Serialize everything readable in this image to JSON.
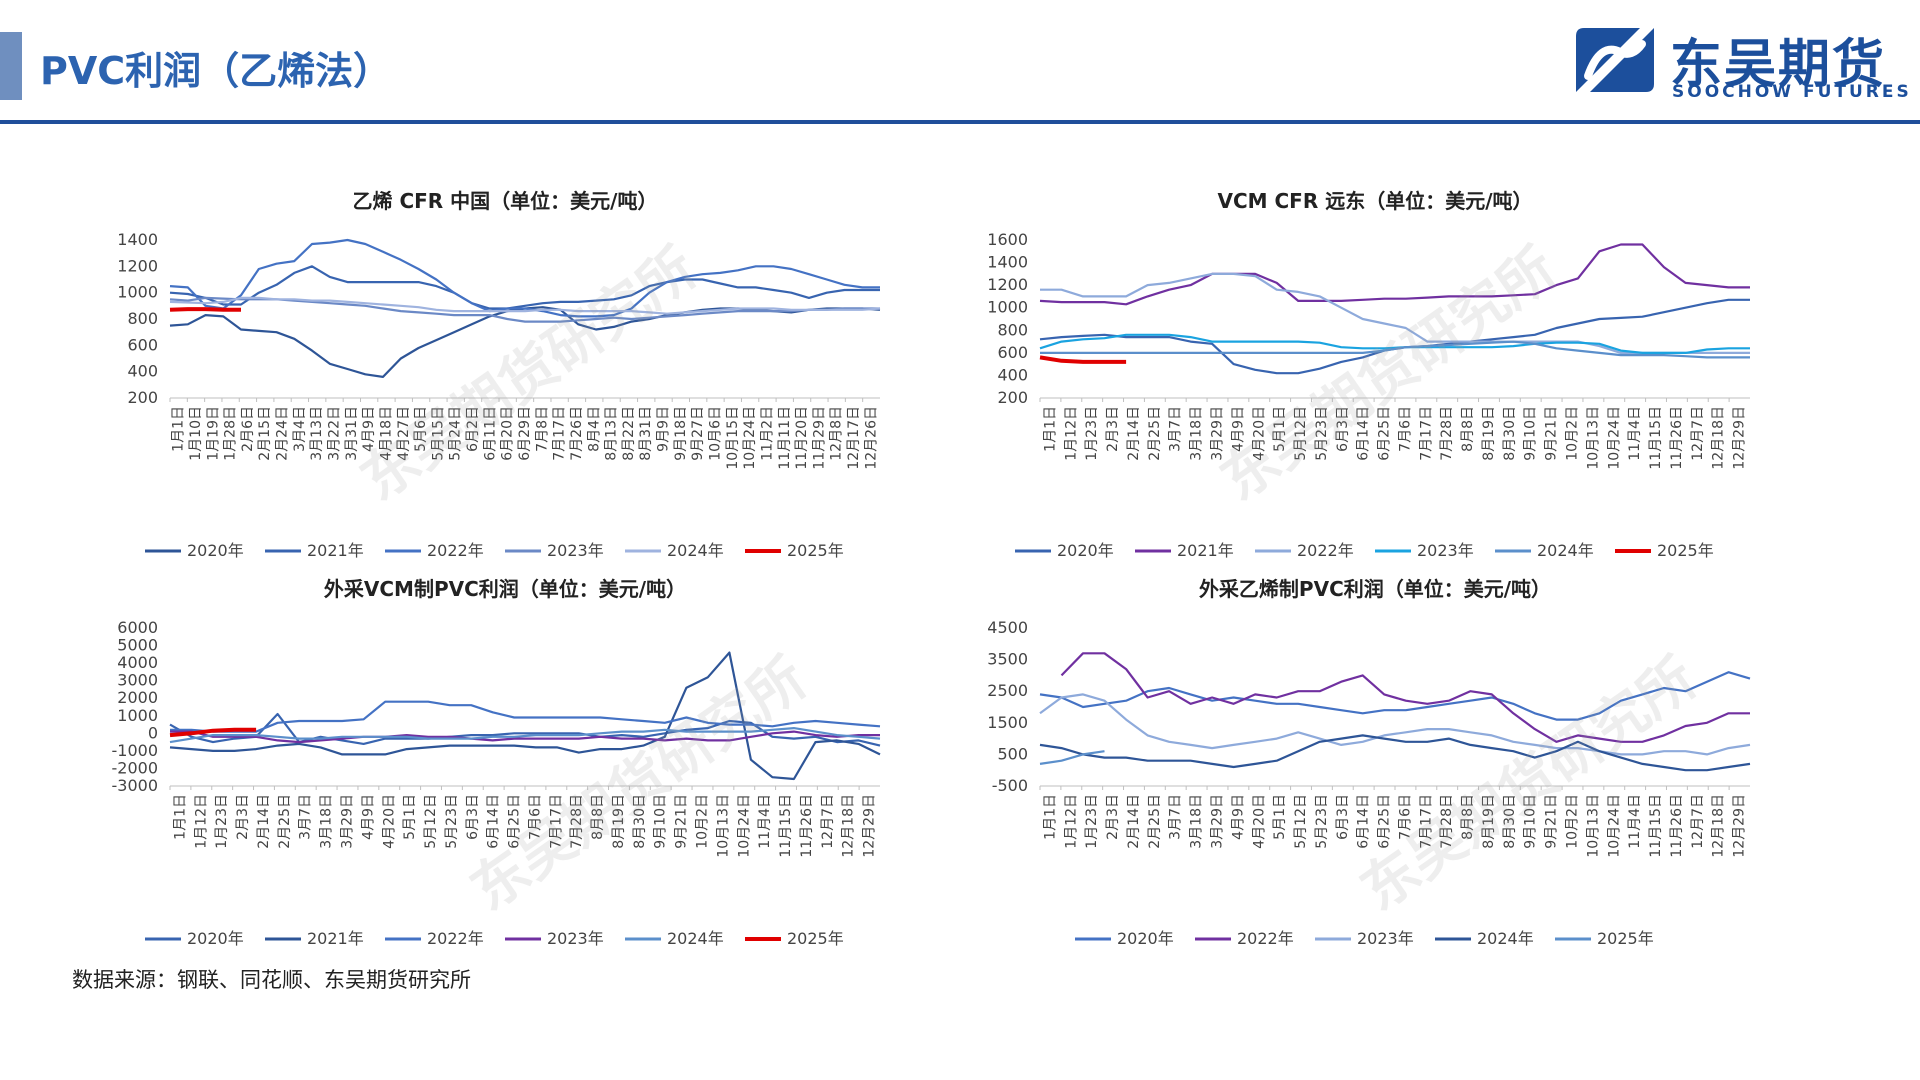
{
  "page": {
    "title": "PVC利润（乙烯法）",
    "source": "数据来源：钢联、同花顺、东吴期货研究所",
    "watermark": "东吴期货研究所"
  },
  "logo": {
    "cn": "东吴期货",
    "en": "SOOCHOW FUTURES",
    "color": "#1c4f9c"
  },
  "chart_data": [
    {
      "id": "ethylene",
      "type": "line",
      "title": "乙烯 CFR 中国（单位：美元/吨）",
      "ylim": [
        200,
        1400
      ],
      "yticks": [
        200,
        400,
        600,
        800,
        1000,
        1200,
        1400
      ],
      "xticks": [
        "1月1日",
        "1月10日",
        "1月19日",
        "1月28日",
        "2月6日",
        "2月15日",
        "2月24日",
        "3月4日",
        "3月13日",
        "3月22日",
        "3月31日",
        "4月9日",
        "4月18日",
        "4月27日",
        "5月6日",
        "5月15日",
        "5月24日",
        "6月2日",
        "6月11日",
        "6月20日",
        "6月29日",
        "7月8日",
        "7月17日",
        "7月26日",
        "8月4日",
        "8月13日",
        "8月22日",
        "8月31日",
        "9月9日",
        "9月18日",
        "9月27日",
        "10月6日",
        "10月15日",
        "10月24日",
        "11月2日",
        "11月11日",
        "11月20日",
        "11月29日",
        "12月8日",
        "12月17日",
        "12月26日"
      ],
      "series": [
        {
          "name": "2020年",
          "color": "#2e5597",
          "values": [
            750,
            760,
            830,
            820,
            720,
            710,
            700,
            650,
            560,
            460,
            420,
            380,
            360,
            500,
            580,
            640,
            700,
            760,
            820,
            860,
            880,
            890,
            870,
            760,
            720,
            740,
            780,
            800,
            830,
            850,
            870,
            880,
            880,
            870,
            860,
            850,
            870,
            880,
            880,
            880,
            870
          ]
        },
        {
          "name": "2021年",
          "color": "#3864b0",
          "values": [
            1000,
            990,
            960,
            910,
            910,
            1000,
            1060,
            1150,
            1200,
            1120,
            1080,
            1080,
            1080,
            1080,
            1080,
            1050,
            1000,
            920,
            880,
            880,
            900,
            920,
            930,
            930,
            940,
            950,
            980,
            1050,
            1080,
            1100,
            1100,
            1070,
            1040,
            1040,
            1020,
            1000,
            960,
            1000,
            1020,
            1020,
            1020
          ]
        },
        {
          "name": "2022年",
          "color": "#4472c4",
          "values": [
            1050,
            1040,
            900,
            880,
            980,
            1180,
            1220,
            1240,
            1370,
            1380,
            1400,
            1370,
            1310,
            1250,
            1180,
            1100,
            1000,
            920,
            860,
            880,
            880,
            860,
            830,
            820,
            820,
            830,
            880,
            1000,
            1080,
            1120,
            1140,
            1150,
            1170,
            1200,
            1200,
            1180,
            1140,
            1100,
            1060,
            1040,
            1040
          ]
        },
        {
          "name": "2023年",
          "color": "#6b89c6",
          "values": [
            950,
            940,
            960,
            955,
            950,
            950,
            950,
            940,
            930,
            920,
            910,
            900,
            880,
            860,
            850,
            840,
            830,
            830,
            830,
            800,
            780,
            780,
            780,
            790,
            800,
            810,
            800,
            810,
            820,
            830,
            840,
            850,
            860,
            860,
            860,
            860,
            870,
            870,
            880,
            880,
            880
          ]
        },
        {
          "name": "2024年",
          "color": "#9fb3df",
          "values": [
            930,
            925,
            920,
            930,
            960,
            960,
            950,
            950,
            940,
            940,
            930,
            920,
            910,
            900,
            890,
            870,
            860,
            860,
            860,
            860,
            860,
            870,
            870,
            860,
            860,
            860,
            860,
            850,
            840,
            850,
            860,
            870,
            880,
            880,
            880,
            870,
            870,
            870,
            870,
            870,
            880
          ]
        },
        {
          "name": "2025年",
          "color": "#e00000",
          "values": [
            870,
            875,
            875,
            870,
            870
          ]
        }
      ]
    },
    {
      "id": "vcm",
      "type": "line",
      "title": "VCM CFR 远东（单位：美元/吨）",
      "ylim": [
        200,
        1600
      ],
      "yticks": [
        200,
        400,
        600,
        800,
        1000,
        1200,
        1400,
        1600
      ],
      "xticks": [
        "1月1日",
        "1月12日",
        "1月23日",
        "2月3日",
        "2月14日",
        "2月25日",
        "3月7日",
        "3月18日",
        "3月29日",
        "4月9日",
        "4月20日",
        "5月1日",
        "5月12日",
        "5月23日",
        "6月3日",
        "6月14日",
        "6月25日",
        "7月6日",
        "7月17日",
        "7月28日",
        "8月8日",
        "8月19日",
        "8月30日",
        "9月10日",
        "9月21日",
        "10月2日",
        "10月13日",
        "10月24日",
        "11月4日",
        "11月15日",
        "11月26日",
        "12月7日",
        "12月18日",
        "12月29日"
      ],
      "series": [
        {
          "name": "2020年",
          "color": "#3864b0",
          "values": [
            720,
            740,
            750,
            760,
            740,
            740,
            740,
            700,
            680,
            500,
            450,
            420,
            420,
            460,
            520,
            560,
            620,
            650,
            660,
            680,
            700,
            720,
            740,
            760,
            820,
            860,
            900,
            910,
            920,
            960,
            1000,
            1040,
            1070,
            1070
          ]
        },
        {
          "name": "2021年",
          "color": "#7030a0",
          "values": [
            1060,
            1050,
            1050,
            1050,
            1030,
            1100,
            1160,
            1200,
            1300,
            1300,
            1300,
            1220,
            1060,
            1060,
            1060,
            1070,
            1080,
            1080,
            1090,
            1100,
            1100,
            1100,
            1110,
            1120,
            1200,
            1260,
            1500,
            1560,
            1560,
            1360,
            1220,
            1200,
            1180,
            1180
          ]
        },
        {
          "name": "2022年",
          "color": "#8eaadb",
          "values": [
            1160,
            1160,
            1100,
            1100,
            1100,
            1200,
            1220,
            1260,
            1300,
            1300,
            1280,
            1160,
            1140,
            1100,
            1000,
            900,
            860,
            820,
            700,
            700,
            700,
            700,
            700,
            700,
            700,
            700,
            660,
            600,
            600,
            600,
            600,
            600,
            600,
            600
          ]
        },
        {
          "name": "2023年",
          "color": "#1aa3e0",
          "values": [
            640,
            700,
            720,
            730,
            760,
            760,
            760,
            740,
            700,
            700,
            700,
            700,
            700,
            690,
            650,
            640,
            640,
            650,
            650,
            650,
            650,
            650,
            660,
            680,
            690,
            690,
            680,
            620,
            600,
            600,
            600,
            630,
            640,
            640
          ]
        },
        {
          "name": "2024年",
          "color": "#5b8fcb",
          "values": [
            600,
            600,
            600,
            600,
            600,
            600,
            600,
            600,
            600,
            600,
            600,
            600,
            600,
            600,
            600,
            600,
            620,
            650,
            660,
            670,
            680,
            690,
            700,
            680,
            640,
            620,
            600,
            580,
            580,
            580,
            570,
            560,
            560,
            560
          ]
        },
        {
          "name": "2025年",
          "color": "#e00000",
          "values": [
            560,
            530,
            520,
            520,
            520
          ]
        }
      ]
    },
    {
      "id": "vcm-profit",
      "type": "line",
      "title": "外采VCM制PVC利润（单位：美元/吨）",
      "ylim": [
        -3000,
        6000
      ],
      "yticks": [
        -3000,
        -2000,
        -1000,
        0,
        1000,
        2000,
        3000,
        4000,
        5000,
        6000
      ],
      "xticks": [
        "1月1日",
        "1月12日",
        "1月23日",
        "2月3日",
        "2月14日",
        "2月25日",
        "3月7日",
        "3月18日",
        "3月29日",
        "4月9日",
        "4月20日",
        "5月1日",
        "5月12日",
        "5月23日",
        "6月3日",
        "6月14日",
        "6月25日",
        "7月6日",
        "7月17日",
        "7月28日",
        "8月8日",
        "8月19日",
        "8月30日",
        "9月10日",
        "9月21日",
        "10月2日",
        "10月13日",
        "10月24日",
        "11月4日",
        "11月15日",
        "11月26日",
        "12月7日",
        "12月18日",
        "12月29日"
      ],
      "series": [
        {
          "name": "2020年",
          "color": "#3864b0",
          "values": [
            500,
            -200,
            -500,
            -300,
            -200,
            1100,
            -500,
            -200,
            -400,
            -600,
            -300,
            -300,
            -300,
            -200,
            -100,
            -100,
            0,
            0,
            0,
            0,
            -200,
            -100,
            -200,
            0,
            200,
            300,
            700,
            600,
            -200,
            -300,
            -200,
            -500,
            -400,
            -700
          ]
        },
        {
          "name": "2021年",
          "color": "#2e5597",
          "values": [
            -800,
            -900,
            -1000,
            -1000,
            -900,
            -700,
            -600,
            -800,
            -1200,
            -1200,
            -1200,
            -900,
            -800,
            -700,
            -700,
            -700,
            -700,
            -800,
            -800,
            -1100,
            -900,
            -900,
            -700,
            -200,
            2600,
            3200,
            4600,
            -1500,
            -2500,
            -2600,
            -500,
            -400,
            -600,
            -1200
          ]
        },
        {
          "name": "2022年",
          "color": "#4472c4",
          "values": [
            200,
            200,
            100,
            100,
            100,
            600,
            700,
            700,
            700,
            800,
            1800,
            1800,
            1800,
            1600,
            1600,
            1200,
            900,
            900,
            900,
            900,
            900,
            800,
            700,
            600,
            900,
            600,
            500,
            500,
            400,
            600,
            700,
            600,
            500,
            400
          ]
        },
        {
          "name": "2023年",
          "color": "#7030a0",
          "values": [
            100,
            100,
            -200,
            -200,
            -200,
            -400,
            -500,
            -400,
            -300,
            -200,
            -200,
            -100,
            -200,
            -200,
            -300,
            -400,
            -300,
            -300,
            -300,
            -300,
            -200,
            -300,
            -300,
            -400,
            -300,
            -400,
            -400,
            -200,
            0,
            100,
            -100,
            -200,
            -100,
            -100
          ]
        },
        {
          "name": "2024年",
          "color": "#5b8fcb",
          "values": [
            -500,
            -300,
            -100,
            -100,
            -100,
            -200,
            -300,
            -300,
            -200,
            -200,
            -200,
            -200,
            -300,
            -300,
            -300,
            -200,
            -200,
            -100,
            -100,
            -100,
            0,
            100,
            100,
            200,
            100,
            100,
            100,
            100,
            200,
            300,
            100,
            -100,
            -200,
            -300
          ]
        },
        {
          "name": "2025年",
          "color": "#e00000",
          "values": [
            -100,
            0,
            150,
            200,
            200
          ]
        }
      ]
    },
    {
      "id": "ethylene-profit",
      "type": "line",
      "title": "外采乙烯制PVC利润（单位：美元/吨）",
      "ylim": [
        -500,
        4500
      ],
      "yticks": [
        -500,
        500,
        1500,
        2500,
        3500,
        4500
      ],
      "xticks": [
        "1月1日",
        "1月12日",
        "1月23日",
        "2月3日",
        "2月14日",
        "2月25日",
        "3月7日",
        "3月18日",
        "3月29日",
        "4月9日",
        "4月20日",
        "5月1日",
        "5月12日",
        "5月23日",
        "6月3日",
        "6月14日",
        "6月25日",
        "7月6日",
        "7月17日",
        "7月28日",
        "8月8日",
        "8月19日",
        "8月30日",
        "9月10日",
        "9月21日",
        "10月2日",
        "10月13日",
        "10月24日",
        "11月4日",
        "11月15日",
        "11月26日",
        "12月7日",
        "12月18日",
        "12月29日"
      ],
      "series": [
        {
          "name": "2020年",
          "color": "#4472c4",
          "values": [
            2400,
            2300,
            2000,
            2100,
            2200,
            2500,
            2600,
            2400,
            2200,
            2300,
            2200,
            2100,
            2100,
            2000,
            1900,
            1800,
            1900,
            1900,
            2000,
            2100,
            2200,
            2300,
            2100,
            1800,
            1600,
            1600,
            1800,
            2200,
            2400,
            2600,
            2500,
            2800,
            3100,
            2900
          ]
        },
        {
          "name": "2022年",
          "color": "#7030a0",
          "values": [
            null,
            3000,
            3700,
            3700,
            3200,
            2300,
            2500,
            2100,
            2300,
            2100,
            2400,
            2300,
            2500,
            2500,
            2800,
            3000,
            2400,
            2200,
            2100,
            2200,
            2500,
            2400,
            1800,
            1300,
            900,
            1100,
            1000,
            900,
            900,
            1100,
            1400,
            1500,
            1800,
            1800
          ]
        },
        {
          "name": "2023年",
          "color": "#8eaadb",
          "values": [
            1800,
            2300,
            2400,
            2200,
            1600,
            1100,
            900,
            800,
            700,
            800,
            900,
            1000,
            1200,
            1000,
            800,
            900,
            1100,
            1200,
            1300,
            1300,
            1200,
            1100,
            900,
            800,
            700,
            700,
            600,
            500,
            500,
            600,
            600,
            500,
            700,
            800
          ]
        },
        {
          "name": "2024年",
          "color": "#2e5597",
          "values": [
            800,
            700,
            500,
            400,
            400,
            300,
            300,
            300,
            200,
            100,
            200,
            300,
            600,
            900,
            1000,
            1100,
            1000,
            900,
            900,
            1000,
            800,
            700,
            600,
            400,
            600,
            900,
            600,
            400,
            200,
            100,
            0,
            0,
            100,
            200
          ]
        },
        {
          "name": "2025年",
          "color": "#5b8fcb",
          "values": [
            200,
            300,
            500,
            600
          ]
        }
      ]
    }
  ]
}
